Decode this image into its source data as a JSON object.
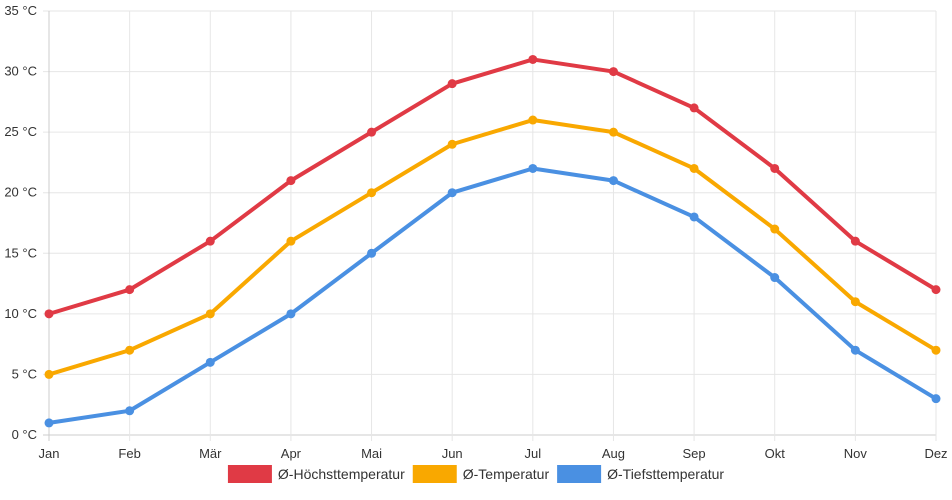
{
  "chart_data": {
    "type": "line",
    "categories": [
      "Jan",
      "Feb",
      "Mär",
      "Apr",
      "Mai",
      "Jun",
      "Jul",
      "Aug",
      "Sep",
      "Okt",
      "Nov",
      "Dez"
    ],
    "y_tick_labels": [
      "0 °C",
      "5 °C",
      "10 °C",
      "15 °C",
      "20 °C",
      "25 °C",
      "30 °C",
      "35 °C"
    ],
    "ylim": [
      0,
      35
    ],
    "y_step": 5,
    "grid": true,
    "legend_position": "bottom",
    "series": [
      {
        "name": "Ø-Höchsttemperatur",
        "color": "#e03a45",
        "values": [
          10,
          12,
          16,
          21,
          25,
          29,
          31,
          30,
          27,
          22,
          16,
          12
        ]
      },
      {
        "name": "Ø-Temperatur",
        "color": "#f9a800",
        "values": [
          5,
          7,
          10,
          16,
          20,
          24,
          26,
          25,
          22,
          17,
          11,
          7
        ]
      },
      {
        "name": "Ø-Tiefsttemperatur",
        "color": "#4a90e2",
        "values": [
          1,
          2,
          6,
          10,
          15,
          20,
          22,
          21,
          18,
          13,
          7,
          3
        ]
      }
    ]
  }
}
